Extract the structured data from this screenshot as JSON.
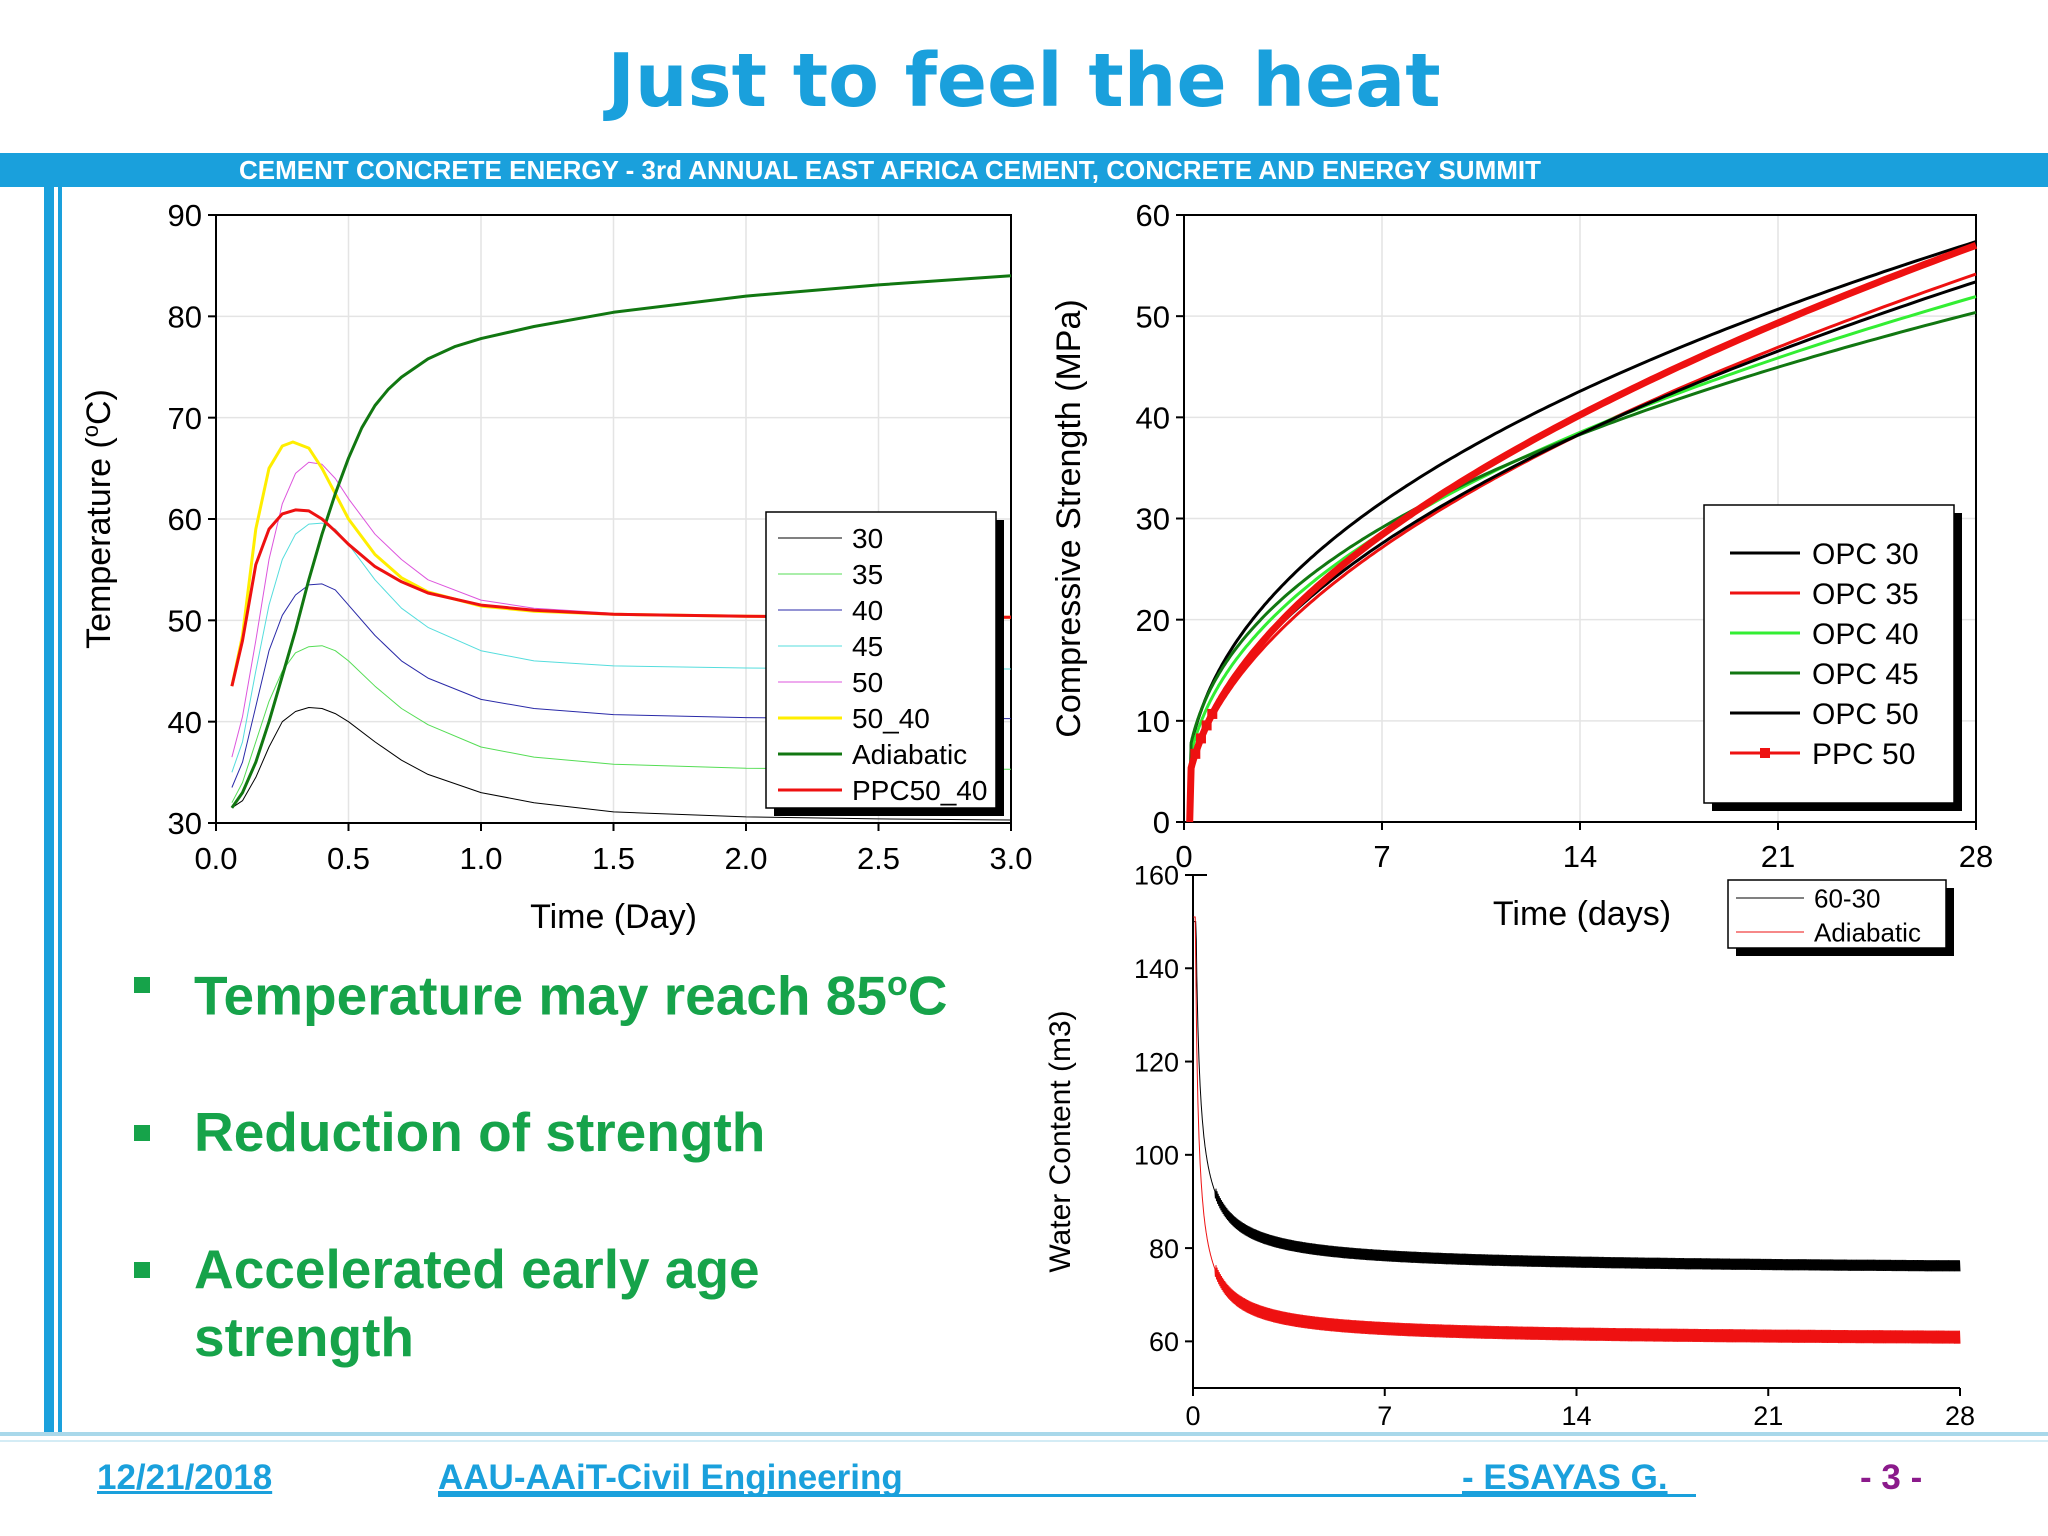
{
  "slide": {
    "title": "Just to feel the heat",
    "banner": "CEMENT   CONCRETE   ENERGY - 3rd ANNUAL EAST AFRICA CEMENT, CONCRETE AND ENERGY SUMMIT",
    "bullets": [
      {
        "text": "Temperature may reach 85",
        "sup": "o",
        "suffix": "C"
      },
      {
        "text": "Reduction of strength"
      },
      {
        "text": "Accelerated early age",
        "line2": "strength"
      }
    ],
    "footer": {
      "date": "12/21/2018",
      "org": "AAU-AAiT-Civil Engineering",
      "author": "- ESAYAS G.",
      "page": "- 3 -"
    }
  },
  "chart_data": [
    {
      "type": "line",
      "xlabel": "Time (Day)",
      "ylabel": "Temperature (°C)",
      "ylabel_parts": {
        "main": "Temperature (",
        "sup": "o",
        "end": "C)"
      },
      "xlim": [
        0.0,
        3.0
      ],
      "ylim": [
        30,
        90
      ],
      "xticks": [
        "0.0",
        "0.5",
        "1.0",
        "1.5",
        "2.0",
        "2.5",
        "3.0"
      ],
      "yticks": [
        "30",
        "40",
        "50",
        "60",
        "70",
        "80",
        "90"
      ],
      "grid": true,
      "legend_position": "right-middle",
      "series": [
        {
          "name": "30",
          "color": "#000000",
          "width": 1,
          "x": [
            0.06,
            0.1,
            0.15,
            0.2,
            0.25,
            0.3,
            0.35,
            0.4,
            0.45,
            0.5,
            0.6,
            0.7,
            0.8,
            1.0,
            1.2,
            1.5,
            2.0,
            2.5,
            3.0
          ],
          "y": [
            31.5,
            32.2,
            34.5,
            37.5,
            40.0,
            41.0,
            41.4,
            41.3,
            40.8,
            40.0,
            38.0,
            36.2,
            34.8,
            33.0,
            32.0,
            31.1,
            30.6,
            30.4,
            30.3
          ]
        },
        {
          "name": "35",
          "color": "#55dd55",
          "width": 1,
          "x": [
            0.06,
            0.1,
            0.15,
            0.2,
            0.25,
            0.3,
            0.35,
            0.4,
            0.45,
            0.5,
            0.6,
            0.7,
            0.8,
            1.0,
            1.2,
            1.5,
            2.0,
            2.5,
            3.0
          ],
          "y": [
            32.0,
            34.0,
            38.0,
            42.0,
            45.0,
            46.8,
            47.4,
            47.5,
            47.0,
            46.0,
            43.5,
            41.3,
            39.7,
            37.5,
            36.5,
            35.8,
            35.4,
            35.3,
            35.3
          ]
        },
        {
          "name": "40",
          "color": "#2a2aa8",
          "width": 1,
          "x": [
            0.06,
            0.1,
            0.15,
            0.2,
            0.25,
            0.3,
            0.35,
            0.4,
            0.45,
            0.5,
            0.6,
            0.7,
            0.8,
            1.0,
            1.2,
            1.5,
            2.0,
            2.5,
            3.0
          ],
          "y": [
            33.5,
            36.0,
            41.5,
            47.0,
            50.5,
            52.5,
            53.5,
            53.6,
            53.0,
            51.5,
            48.5,
            46.0,
            44.3,
            42.2,
            41.3,
            40.7,
            40.4,
            40.3,
            40.3
          ]
        },
        {
          "name": "45",
          "color": "#55dddd",
          "width": 1,
          "x": [
            0.06,
            0.1,
            0.15,
            0.2,
            0.25,
            0.3,
            0.35,
            0.4,
            0.45,
            0.5,
            0.6,
            0.7,
            0.8,
            1.0,
            1.2,
            1.5,
            2.0,
            2.5,
            3.0
          ],
          "y": [
            35.0,
            38.0,
            45.0,
            51.5,
            56.0,
            58.5,
            59.5,
            59.6,
            59.0,
            57.5,
            54.0,
            51.2,
            49.3,
            47.0,
            46.0,
            45.5,
            45.3,
            45.2,
            45.2
          ]
        },
        {
          "name": "50",
          "color": "#dd55dd",
          "width": 1,
          "x": [
            0.06,
            0.1,
            0.15,
            0.2,
            0.25,
            0.3,
            0.35,
            0.4,
            0.45,
            0.5,
            0.6,
            0.7,
            0.8,
            1.0,
            1.2,
            1.5,
            2.0,
            2.5,
            3.0
          ],
          "y": [
            36.5,
            40.5,
            48.0,
            56.0,
            61.5,
            64.5,
            65.6,
            65.4,
            64.0,
            62.0,
            58.5,
            56.0,
            54.0,
            52.0,
            51.2,
            50.7,
            50.4,
            50.3,
            50.3
          ]
        },
        {
          "name": "50_40",
          "color": "#ffee00",
          "width": 3,
          "x": [
            0.06,
            0.1,
            0.15,
            0.2,
            0.25,
            0.29,
            0.35,
            0.4,
            0.45,
            0.5,
            0.6,
            0.7,
            0.8,
            1.0,
            1.2,
            1.5,
            2.0,
            2.5,
            3.0
          ],
          "y": [
            43.5,
            48.5,
            59.0,
            65.0,
            67.2,
            67.6,
            67.0,
            65.0,
            62.5,
            60.0,
            56.5,
            54.2,
            52.8,
            51.4,
            50.9,
            50.6,
            50.4,
            50.3,
            50.3
          ]
        },
        {
          "name": "Adiabatic",
          "color": "#117711",
          "width": 3,
          "x": [
            0.06,
            0.1,
            0.15,
            0.2,
            0.25,
            0.3,
            0.35,
            0.4,
            0.45,
            0.5,
            0.55,
            0.6,
            0.65,
            0.7,
            0.8,
            0.9,
            1.0,
            1.2,
            1.5,
            2.0,
            2.5,
            3.0
          ],
          "y": [
            31.5,
            33.0,
            36.0,
            40.0,
            44.5,
            49.0,
            54.0,
            58.5,
            62.5,
            66.0,
            69.0,
            71.2,
            72.8,
            74.0,
            75.8,
            77.0,
            77.8,
            79.0,
            80.4,
            82.0,
            83.1,
            84.0
          ]
        },
        {
          "name": "PPC50_40",
          "color": "#ee1111",
          "width": 3,
          "x": [
            0.06,
            0.1,
            0.15,
            0.2,
            0.25,
            0.3,
            0.35,
            0.4,
            0.45,
            0.5,
            0.6,
            0.7,
            0.8,
            1.0,
            1.2,
            1.5,
            2.0,
            2.5,
            3.0
          ],
          "y": [
            43.5,
            48.0,
            55.5,
            59.0,
            60.5,
            60.9,
            60.8,
            60.0,
            58.8,
            57.5,
            55.3,
            53.8,
            52.7,
            51.5,
            51.0,
            50.6,
            50.4,
            50.3,
            50.3
          ]
        }
      ]
    },
    {
      "type": "line",
      "xlabel": "Time (days)",
      "ylabel": "Compressive Strength (MPa)",
      "xlim": [
        0,
        28
      ],
      "ylim": [
        0,
        60
      ],
      "xticks": [
        "0",
        "7",
        "14",
        "21",
        "28"
      ],
      "yticks": [
        "0",
        "10",
        "20",
        "30",
        "40",
        "50",
        "60"
      ],
      "grid": true,
      "legend_position": "right-middle",
      "series": [
        {
          "name": "OPC 30",
          "color": "#000000",
          "width": 3,
          "a": 13.68,
          "p": 0.4302
        },
        {
          "name": "OPC 35",
          "color": "#ee1111",
          "width": 3,
          "a": 10.28,
          "p": 0.4987
        },
        {
          "name": "OPC 40",
          "color": "#33ee33",
          "width": 3,
          "a": 12.34,
          "p": 0.4313
        },
        {
          "name": "OPC 45",
          "color": "#117711",
          "width": 3,
          "a": 13.48,
          "p": 0.3956
        },
        {
          "name": "OPC 50",
          "color": "#000000",
          "width": 3,
          "a": 10.87,
          "p": 0.4777
        },
        {
          "name": "PPC 50",
          "color": "#ee1111",
          "width": 7,
          "marker": "square",
          "a": 10.68,
          "p": 0.5026
        }
      ]
    },
    {
      "type": "line",
      "xlabel": "",
      "ylabel": "Water Content (m3)",
      "xlim": [
        0,
        28
      ],
      "ylim": [
        50,
        160
      ],
      "xticks": [
        "0",
        "7",
        "14",
        "21",
        "28"
      ],
      "yticks": [
        "60",
        "80",
        "100",
        "120",
        "140",
        "160"
      ],
      "grid": false,
      "legend_position": "top-right",
      "series": [
        {
          "name": "60-30",
          "color": "#000000",
          "width": 1,
          "start": 150,
          "final": 75,
          "coef": 14.5,
          "p": 0.75,
          "amp": 1.2
        },
        {
          "name": "Adiabatic",
          "color": "#ee1111",
          "width": 1,
          "start": 151,
          "final": 60,
          "coef": 13.0,
          "p": 0.8,
          "amp": 1.4
        }
      ]
    }
  ]
}
